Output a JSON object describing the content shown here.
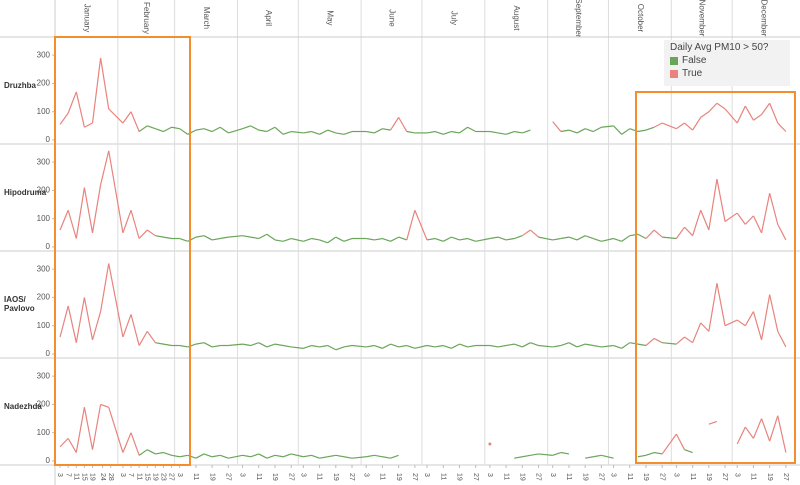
{
  "chart_data": {
    "type": "line",
    "legend_title": "Daily Avg PM10 > 50?",
    "threshold": 50,
    "legend": [
      {
        "name": "False",
        "color": "#6aa55a"
      },
      {
        "name": "True",
        "color": "#e8837d"
      }
    ],
    "months": [
      {
        "name": "January",
        "day_ticks": [
          3,
          7,
          11,
          15,
          19,
          24,
          28
        ]
      },
      {
        "name": "February",
        "day_ticks": [
          3,
          7,
          11,
          15,
          19,
          23,
          27
        ]
      },
      {
        "name": "March",
        "day_ticks": [
          3,
          11,
          19,
          27
        ]
      },
      {
        "name": "April",
        "day_ticks": [
          3,
          11,
          19,
          27
        ]
      },
      {
        "name": "May",
        "day_ticks": [
          3,
          11,
          19,
          27
        ]
      },
      {
        "name": "June",
        "day_ticks": [
          3,
          11,
          19,
          27
        ]
      },
      {
        "name": "July",
        "day_ticks": [
          3,
          11,
          19,
          27
        ]
      },
      {
        "name": "August",
        "day_ticks": [
          3,
          11,
          19,
          27
        ]
      },
      {
        "name": "September",
        "day_ticks": [
          3,
          11,
          19,
          27
        ]
      },
      {
        "name": "October",
        "day_ticks": [
          3,
          11,
          19,
          27
        ]
      },
      {
        "name": "November",
        "day_ticks": [
          3,
          11,
          19,
          27
        ]
      },
      {
        "name": "December",
        "day_ticks": [
          3,
          11,
          19,
          27
        ]
      }
    ],
    "x": [
      "01-03",
      "01-07",
      "01-11",
      "01-15",
      "01-19",
      "01-23",
      "01-27",
      "02-03",
      "02-07",
      "02-11",
      "02-15",
      "02-19",
      "02-23",
      "02-27",
      "03-03",
      "03-07",
      "03-11",
      "03-15",
      "03-19",
      "03-23",
      "03-27",
      "04-03",
      "04-07",
      "04-11",
      "04-15",
      "04-19",
      "04-23",
      "04-27",
      "05-03",
      "05-07",
      "05-11",
      "05-15",
      "05-19",
      "05-23",
      "05-27",
      "06-03",
      "06-07",
      "06-11",
      "06-15",
      "06-19",
      "06-23",
      "06-27",
      "07-03",
      "07-07",
      "07-11",
      "07-15",
      "07-19",
      "07-23",
      "07-27",
      "08-03",
      "08-07",
      "08-11",
      "08-15",
      "08-19",
      "08-23",
      "08-27",
      "09-03",
      "09-07",
      "09-11",
      "09-15",
      "09-19",
      "09-23",
      "09-27",
      "10-03",
      "10-07",
      "10-11",
      "10-15",
      "10-19",
      "10-23",
      "10-27",
      "11-03",
      "11-07",
      "11-11",
      "11-15",
      "11-19",
      "11-23",
      "11-27",
      "12-03",
      "12-07",
      "12-11",
      "12-15",
      "12-19",
      "12-23",
      "12-27"
    ],
    "ylim": [
      0,
      350
    ],
    "yticks": [
      0,
      100,
      200,
      300
    ],
    "panels": [
      {
        "name": "Druzhba",
        "values": [
          55,
          95,
          170,
          45,
          60,
          290,
          110,
          60,
          100,
          30,
          50,
          40,
          30,
          45,
          40,
          20,
          35,
          40,
          30,
          45,
          25,
          40,
          50,
          35,
          30,
          45,
          20,
          30,
          25,
          30,
          20,
          35,
          25,
          20,
          30,
          30,
          25,
          40,
          35,
          80,
          30,
          25,
          25,
          30,
          20,
          30,
          25,
          45,
          30,
          30,
          25,
          20,
          30,
          25,
          35,
          null,
          65,
          30,
          35,
          25,
          40,
          30,
          45,
          50,
          20,
          40,
          30,
          35,
          45,
          60,
          40,
          60,
          35,
          80,
          100,
          130,
          110,
          60,
          120,
          70,
          90,
          130,
          60,
          30
        ]
      },
      {
        "name": "Hipodruma",
        "values": [
          60,
          130,
          30,
          210,
          50,
          220,
          340,
          50,
          130,
          30,
          60,
          40,
          35,
          30,
          30,
          20,
          35,
          40,
          25,
          30,
          35,
          40,
          35,
          30,
          45,
          25,
          20,
          30,
          20,
          30,
          25,
          15,
          35,
          20,
          30,
          30,
          25,
          30,
          20,
          35,
          25,
          130,
          25,
          30,
          20,
          35,
          25,
          30,
          20,
          30,
          35,
          25,
          30,
          40,
          60,
          35,
          25,
          30,
          35,
          25,
          40,
          30,
          20,
          30,
          20,
          40,
          45,
          30,
          60,
          35,
          30,
          70,
          40,
          130,
          60,
          240,
          90,
          120,
          80,
          110,
          50,
          190,
          80,
          25
        ]
      },
      {
        "name": "IAOS/ Pavlovo",
        "values": [
          60,
          170,
          40,
          200,
          50,
          150,
          320,
          60,
          140,
          30,
          80,
          40,
          35,
          30,
          30,
          25,
          35,
          40,
          25,
          30,
          30,
          35,
          30,
          40,
          25,
          35,
          30,
          25,
          20,
          30,
          25,
          30,
          15,
          25,
          30,
          25,
          30,
          20,
          35,
          25,
          30,
          20,
          30,
          25,
          30,
          20,
          35,
          25,
          30,
          30,
          25,
          30,
          35,
          25,
          40,
          30,
          25,
          30,
          40,
          25,
          35,
          30,
          25,
          30,
          20,
          40,
          35,
          30,
          55,
          40,
          35,
          60,
          40,
          110,
          80,
          250,
          100,
          120,
          100,
          150,
          50,
          210,
          80,
          25
        ]
      },
      {
        "name": "Nadezhda",
        "values": [
          50,
          80,
          30,
          190,
          40,
          200,
          190,
          30,
          100,
          20,
          40,
          25,
          30,
          20,
          15,
          20,
          10,
          25,
          15,
          20,
          10,
          20,
          15,
          25,
          10,
          20,
          15,
          25,
          15,
          20,
          10,
          15,
          20,
          15,
          10,
          15,
          20,
          15,
          10,
          20,
          null,
          null,
          null,
          null,
          null,
          null,
          null,
          null,
          null,
          60,
          null,
          null,
          10,
          15,
          20,
          25,
          20,
          30,
          25,
          null,
          10,
          15,
          20,
          10,
          null,
          null,
          15,
          20,
          30,
          25,
          95,
          40,
          30,
          null,
          130,
          140,
          null,
          60,
          120,
          80,
          150,
          70,
          160,
          30
        ]
      }
    ]
  }
}
